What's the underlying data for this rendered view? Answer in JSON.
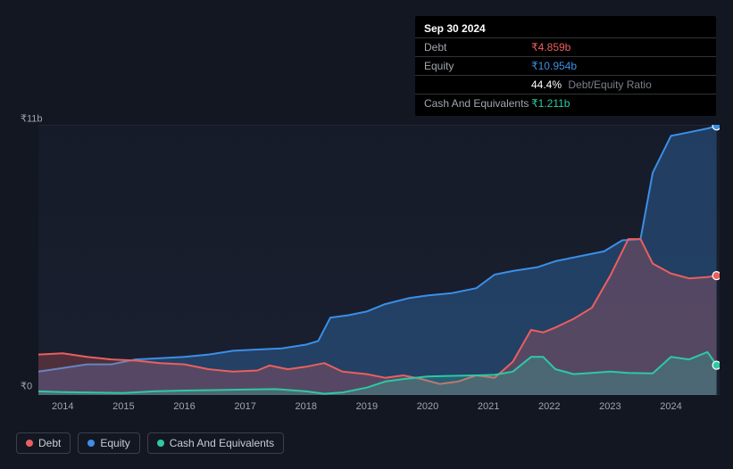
{
  "tooltip": {
    "date": "Sep 30 2024",
    "rows": [
      {
        "label": "Debt",
        "value": "₹4.859b",
        "cls": "debt"
      },
      {
        "label": "Equity",
        "value": "₹10.954b",
        "cls": "equity"
      }
    ],
    "ratio": {
      "pct": "44.4%",
      "label": "Debt/Equity Ratio"
    },
    "cash": {
      "label": "Cash And Equivalents",
      "value": "₹1.211b",
      "cls": "cash"
    }
  },
  "chart": {
    "type": "area-line",
    "background_color": "#131722",
    "plot_bg": "linear-gradient(180deg,#161b29,#1a2030)",
    "ylim": [
      0,
      11
    ],
    "ylabels": [
      {
        "v": 11,
        "text": "₹11b"
      },
      {
        "v": 0,
        "text": "₹0"
      }
    ],
    "xlim": [
      2013.6,
      2024.8
    ],
    "xticks": [
      2014,
      2015,
      2016,
      2017,
      2018,
      2019,
      2020,
      2021,
      2022,
      2023,
      2024
    ],
    "grid_color": "#2a3040",
    "series": {
      "debt": {
        "label": "Debt",
        "color": "#eb5f5f",
        "fill_opacity": 0.25,
        "line_width": 2,
        "end_dot": true,
        "data": [
          [
            2013.6,
            1.65
          ],
          [
            2014.0,
            1.7
          ],
          [
            2014.4,
            1.55
          ],
          [
            2014.8,
            1.45
          ],
          [
            2015.2,
            1.4
          ],
          [
            2015.6,
            1.3
          ],
          [
            2016.0,
            1.25
          ],
          [
            2016.4,
            1.05
          ],
          [
            2016.8,
            0.95
          ],
          [
            2017.2,
            1.0
          ],
          [
            2017.4,
            1.2
          ],
          [
            2017.7,
            1.05
          ],
          [
            2018.0,
            1.15
          ],
          [
            2018.3,
            1.3
          ],
          [
            2018.6,
            0.95
          ],
          [
            2019.0,
            0.85
          ],
          [
            2019.3,
            0.7
          ],
          [
            2019.6,
            0.8
          ],
          [
            2019.9,
            0.65
          ],
          [
            2020.2,
            0.45
          ],
          [
            2020.5,
            0.55
          ],
          [
            2020.8,
            0.8
          ],
          [
            2021.1,
            0.7
          ],
          [
            2021.4,
            1.35
          ],
          [
            2021.7,
            2.65
          ],
          [
            2021.9,
            2.55
          ],
          [
            2022.1,
            2.75
          ],
          [
            2022.4,
            3.1
          ],
          [
            2022.7,
            3.55
          ],
          [
            2023.0,
            4.85
          ],
          [
            2023.3,
            6.35
          ],
          [
            2023.5,
            6.35
          ],
          [
            2023.7,
            5.35
          ],
          [
            2024.0,
            4.95
          ],
          [
            2024.3,
            4.75
          ],
          [
            2024.6,
            4.8
          ],
          [
            2024.75,
            4.859
          ]
        ]
      },
      "equity": {
        "label": "Equity",
        "color": "#3b8fe6",
        "fill_opacity": 0.3,
        "line_width": 2,
        "end_dot": true,
        "data": [
          [
            2013.6,
            0.95
          ],
          [
            2014.0,
            1.1
          ],
          [
            2014.4,
            1.25
          ],
          [
            2014.8,
            1.25
          ],
          [
            2015.2,
            1.45
          ],
          [
            2015.6,
            1.5
          ],
          [
            2016.0,
            1.55
          ],
          [
            2016.4,
            1.65
          ],
          [
            2016.8,
            1.8
          ],
          [
            2017.2,
            1.85
          ],
          [
            2017.6,
            1.9
          ],
          [
            2018.0,
            2.05
          ],
          [
            2018.2,
            2.2
          ],
          [
            2018.4,
            3.15
          ],
          [
            2018.7,
            3.25
          ],
          [
            2019.0,
            3.4
          ],
          [
            2019.3,
            3.7
          ],
          [
            2019.7,
            3.95
          ],
          [
            2020.0,
            4.05
          ],
          [
            2020.4,
            4.15
          ],
          [
            2020.8,
            4.35
          ],
          [
            2021.1,
            4.9
          ],
          [
            2021.4,
            5.05
          ],
          [
            2021.8,
            5.2
          ],
          [
            2022.1,
            5.45
          ],
          [
            2022.5,
            5.65
          ],
          [
            2022.9,
            5.85
          ],
          [
            2023.2,
            6.3
          ],
          [
            2023.5,
            6.35
          ],
          [
            2023.7,
            9.05
          ],
          [
            2024.0,
            10.55
          ],
          [
            2024.3,
            10.7
          ],
          [
            2024.6,
            10.85
          ],
          [
            2024.75,
            10.954
          ]
        ]
      },
      "cash": {
        "label": "Cash And Equivalents",
        "color": "#2dc9a4",
        "fill_opacity": 0.25,
        "line_width": 2,
        "end_dot": true,
        "data": [
          [
            2013.6,
            0.15
          ],
          [
            2014.0,
            0.12
          ],
          [
            2014.5,
            0.1
          ],
          [
            2015.0,
            0.08
          ],
          [
            2015.5,
            0.15
          ],
          [
            2016.0,
            0.18
          ],
          [
            2016.5,
            0.2
          ],
          [
            2017.0,
            0.22
          ],
          [
            2017.5,
            0.24
          ],
          [
            2018.0,
            0.15
          ],
          [
            2018.3,
            0.05
          ],
          [
            2018.6,
            0.1
          ],
          [
            2019.0,
            0.3
          ],
          [
            2019.3,
            0.55
          ],
          [
            2019.6,
            0.65
          ],
          [
            2020.0,
            0.75
          ],
          [
            2020.4,
            0.78
          ],
          [
            2020.8,
            0.8
          ],
          [
            2021.1,
            0.82
          ],
          [
            2021.4,
            0.95
          ],
          [
            2021.7,
            1.55
          ],
          [
            2021.9,
            1.55
          ],
          [
            2022.1,
            1.05
          ],
          [
            2022.4,
            0.85
          ],
          [
            2022.7,
            0.9
          ],
          [
            2023.0,
            0.95
          ],
          [
            2023.3,
            0.9
          ],
          [
            2023.7,
            0.88
          ],
          [
            2024.0,
            1.55
          ],
          [
            2024.3,
            1.45
          ],
          [
            2024.6,
            1.75
          ],
          [
            2024.75,
            1.211
          ]
        ]
      }
    },
    "legend_border": "#3a3f4b"
  }
}
